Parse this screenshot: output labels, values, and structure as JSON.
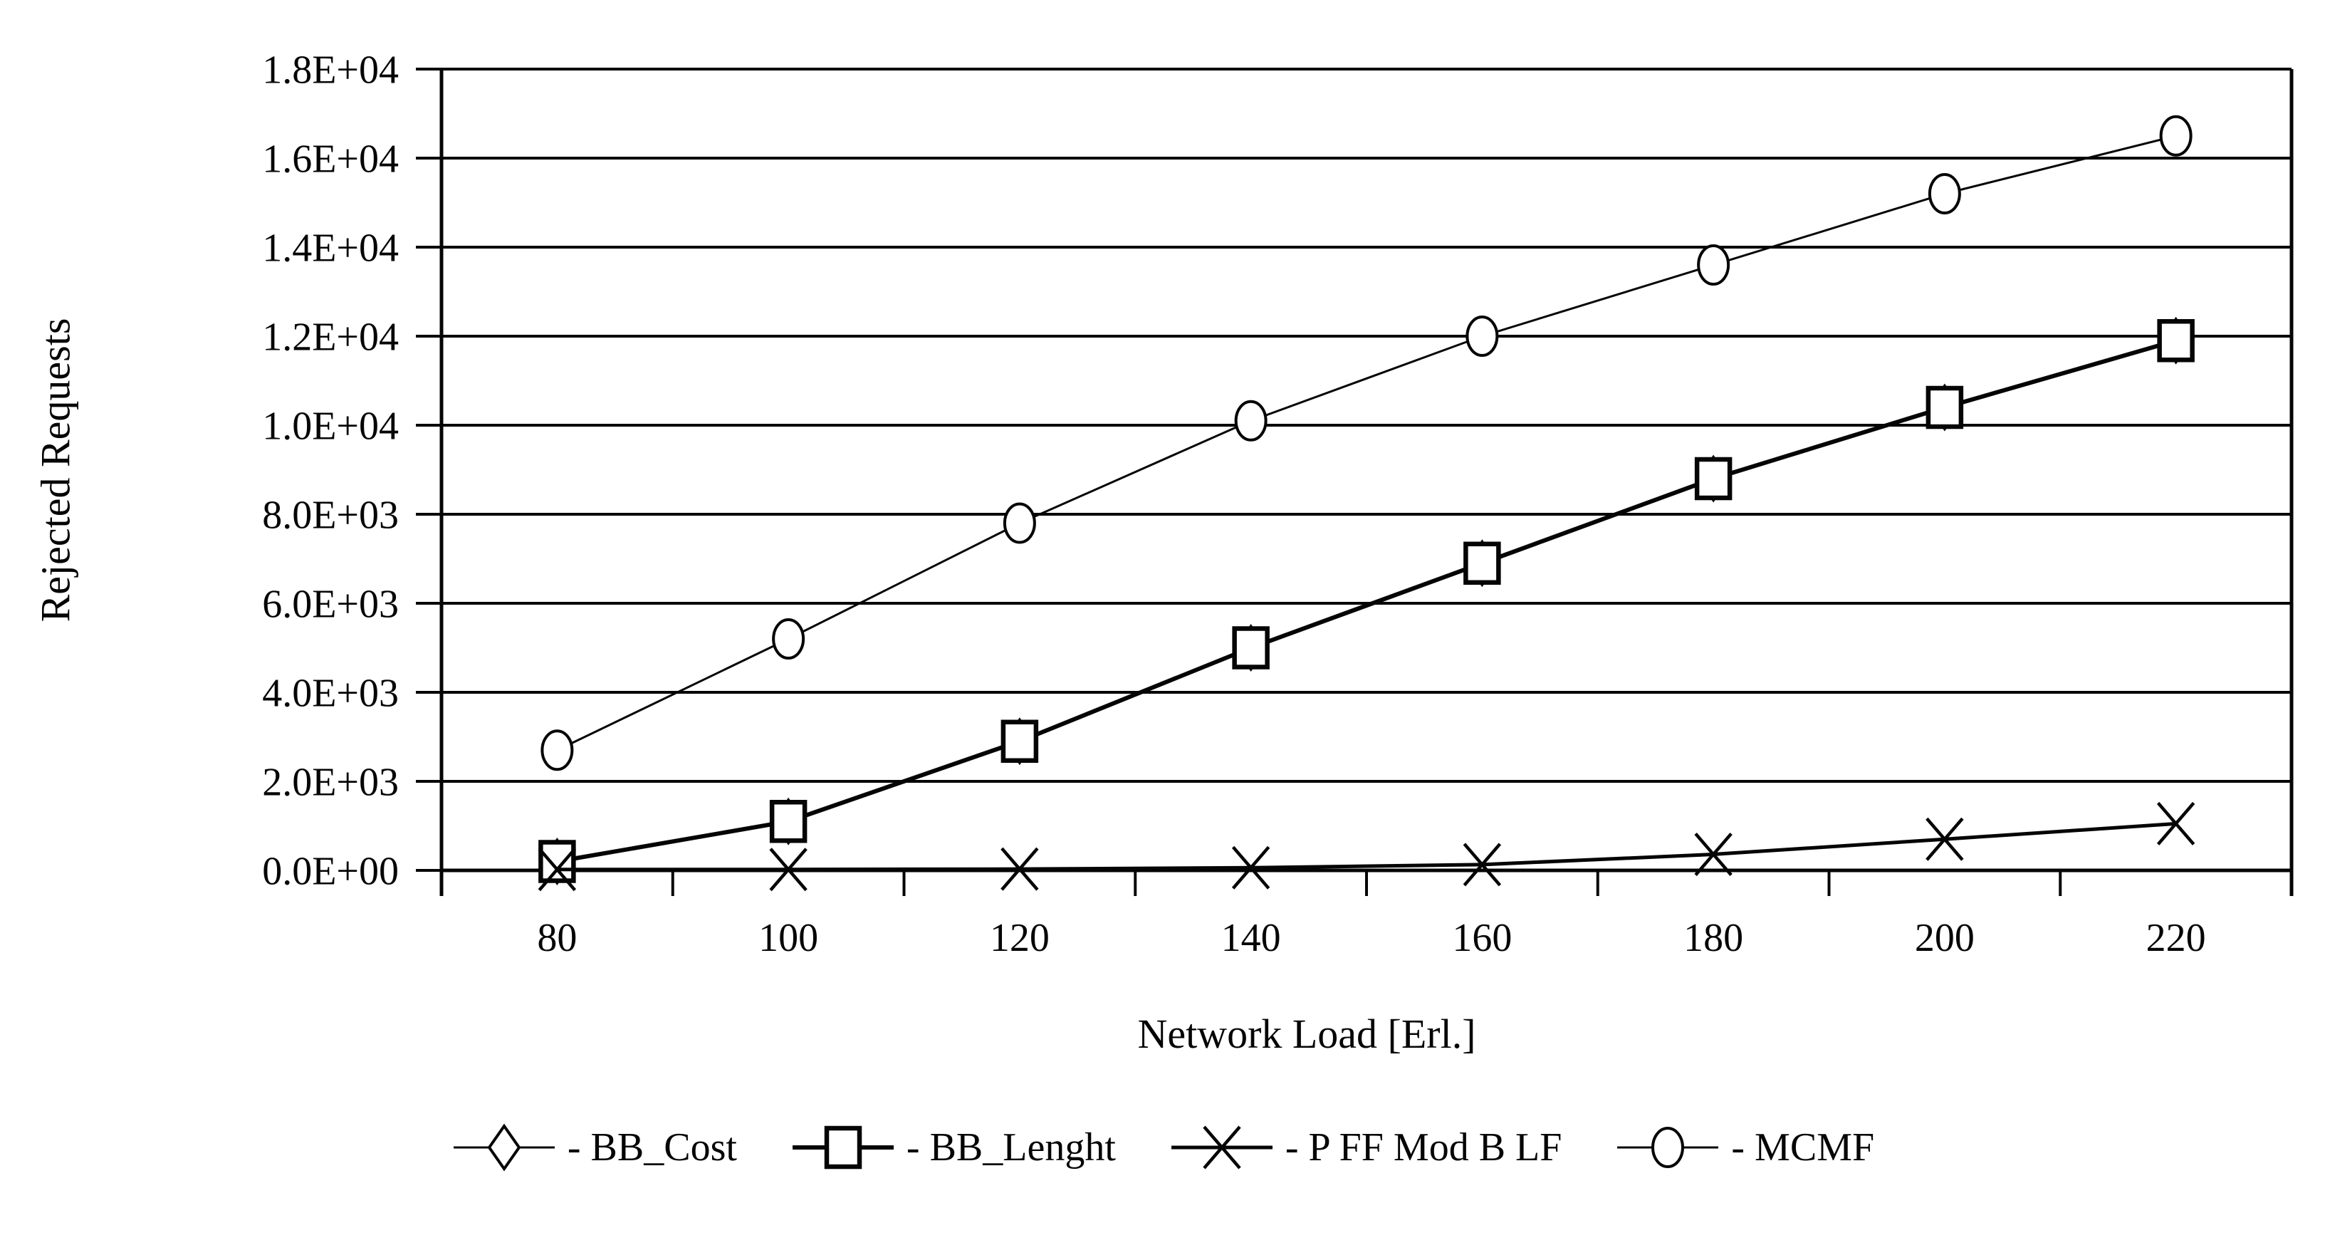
{
  "page": {
    "background": "#ffffff",
    "ink_color": "#050505"
  },
  "chart_data": {
    "type": "line",
    "title": "",
    "xlabel": "Network Load [Erl.]",
    "ylabel": "Rejected Requests",
    "categories": [
      80,
      100,
      120,
      140,
      160,
      180,
      200,
      220
    ],
    "x_tick_labels": [
      "80",
      "100",
      "120",
      "140",
      "160",
      "180",
      "200",
      "220"
    ],
    "y_tick_labels": [
      "0.0E+00",
      "2.0E+03",
      "4.0E+03",
      "6.0E+03",
      "8.0E+03",
      "1.0E+04",
      "1.2E+04",
      "1.4E+04",
      "1.6E+04",
      "1.8E+04"
    ],
    "ylim": [
      0,
      18000
    ],
    "y_tick_step": 2000,
    "grid": "horizontal-only",
    "legend_position": "bottom",
    "axis_color": "#000000",
    "marker_fill": "#ffffff",
    "series": [
      {
        "name": "BB_Cost",
        "legend_label": "- BB_Cost",
        "marker": "diamond",
        "line_style": "thin",
        "values": [
          200,
          1100,
          2900,
          5000,
          6900,
          8800,
          10400,
          11900
        ]
      },
      {
        "name": "BB_Lenght",
        "legend_label": "- BB_Lenght",
        "marker": "square",
        "line_style": "thick",
        "values": [
          200,
          1100,
          2900,
          5000,
          6900,
          8800,
          10400,
          11900
        ]
      },
      {
        "name": "P FF Mod B LF",
        "legend_label": "- P FF Mod B LF",
        "marker": "x",
        "line_style": "medium",
        "values": [
          20,
          20,
          30,
          60,
          130,
          360,
          700,
          1050
        ]
      },
      {
        "name": "MCMF",
        "legend_label": "- MCMF",
        "marker": "circle",
        "line_style": "thin",
        "values": [
          2700,
          5200,
          7800,
          10100,
          12000,
          13600,
          15200,
          16500
        ]
      }
    ]
  }
}
